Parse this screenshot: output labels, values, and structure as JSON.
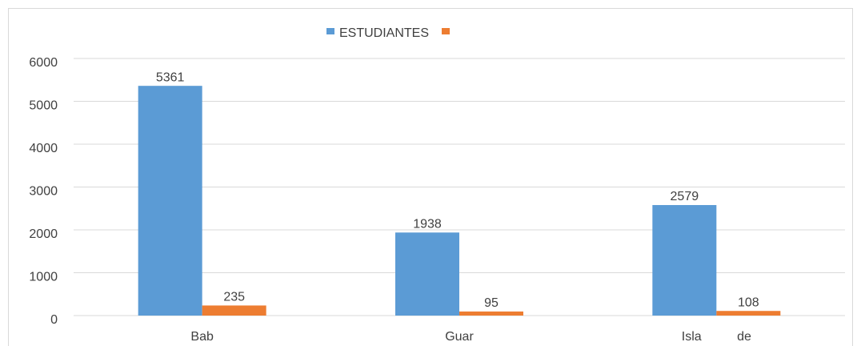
{
  "chart_data": {
    "type": "bar",
    "categories": [
      "Bab",
      "Guar",
      "Isla de"
    ],
    "series": [
      {
        "name": "ESTUDIANTES",
        "color": "#5b9bd5",
        "values": [
          5361,
          1938,
          2579
        ]
      },
      {
        "color": "#ed7d31",
        "values": [
          235,
          95,
          108
        ]
      }
    ],
    "ylim": [
      0,
      6000
    ],
    "yticks": [
      0,
      1000,
      2000,
      3000,
      4000,
      5000,
      6000
    ],
    "grid": true,
    "legend": "top",
    "data_labels": true
  }
}
